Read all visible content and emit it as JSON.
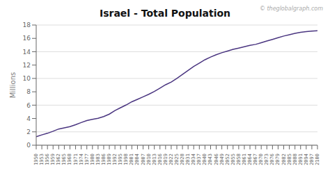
{
  "chart_data": {
    "type": "line",
    "title": "Israel - Total Population",
    "y_label": "Millions",
    "annotations": [
      "© theglobalgraph.com"
    ],
    "color": "#4a3580",
    "x": [
      1950,
      1953,
      1956,
      1959,
      1962,
      1965,
      1968,
      1971,
      1974,
      1977,
      1980,
      1983,
      1986,
      1989,
      1992,
      1995,
      1998,
      2001,
      2004,
      2007,
      2010,
      2013,
      2016,
      2019,
      2022,
      2025,
      2028,
      2031,
      2034,
      2037,
      2040,
      2043,
      2046,
      2049,
      2052,
      2055,
      2058,
      2061,
      2064,
      2067,
      2070,
      2073,
      2076,
      2079,
      2082,
      2085,
      2088,
      2091,
      2094,
      2097,
      2100
    ],
    "values": [
      1.258,
      1.551,
      1.786,
      2.089,
      2.43,
      2.598,
      2.776,
      3.065,
      3.399,
      3.686,
      3.882,
      4.035,
      4.299,
      4.659,
      5.195,
      5.619,
      6.031,
      6.508,
      6.869,
      7.243,
      7.624,
      8.059,
      8.547,
      9.054,
      9.456,
      10.0,
      10.6,
      11.2,
      11.8,
      12.3,
      12.8,
      13.2,
      13.55,
      13.85,
      14.1,
      14.35,
      14.55,
      14.75,
      14.95,
      15.1,
      15.35,
      15.6,
      15.85,
      16.1,
      16.35,
      16.55,
      16.75,
      16.9,
      17.0,
      17.1,
      17.15
    ],
    "xlim": [
      1950,
      2100
    ],
    "xticks": [
      1950,
      1953,
      1956,
      1959,
      1962,
      1965,
      1968,
      1971,
      1974,
      1977,
      1980,
      1983,
      1986,
      1989,
      1992,
      1995,
      1998,
      2001,
      2004,
      2007,
      2010,
      2013,
      2016,
      2019,
      2022,
      2025,
      2028,
      2031,
      2034,
      2037,
      2040,
      2043,
      2046,
      2049,
      2052,
      2055,
      2058,
      2061,
      2064,
      2067,
      2070,
      2073,
      2076,
      2079,
      2082,
      2085,
      2088,
      2091,
      2094,
      2097,
      2100
    ],
    "ylim": [
      0,
      18
    ],
    "yticks": [
      0,
      2,
      4,
      6,
      8,
      10,
      12,
      14,
      16,
      18
    ],
    "grid": true
  }
}
